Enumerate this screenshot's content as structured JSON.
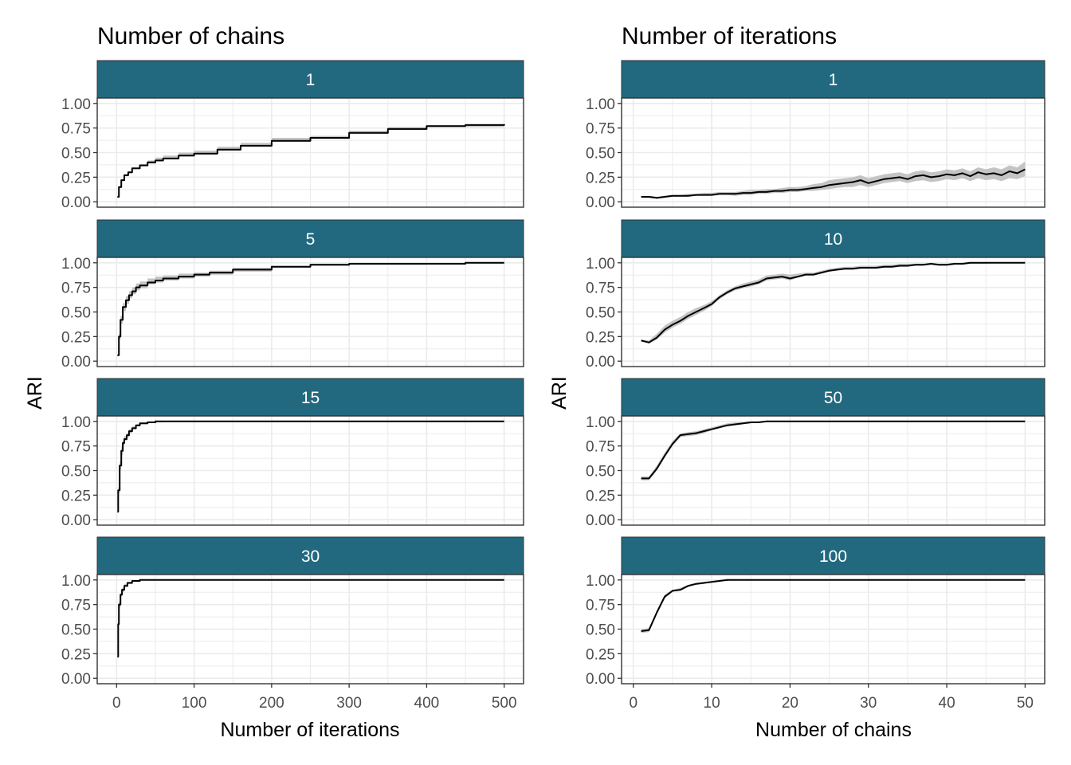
{
  "figure": {
    "left": {
      "title": "Number of chains",
      "xlabel": "Number of iterations",
      "ylabel": "ARI"
    },
    "right": {
      "title": "Number of iterations",
      "xlabel": "Number of chains",
      "ylabel": "ARI"
    }
  },
  "colors": {
    "strip": "#226980",
    "strip_text": "#ffffff",
    "line": "#000000",
    "ribbon": "#c4c4c4",
    "grid": "#ebebeb",
    "panel_border": "#333333",
    "tick_text": "#4d4d4d"
  },
  "chart_data": [
    {
      "type": "line",
      "title": "Number of chains",
      "xlabel": "Number of iterations",
      "ylabel": "ARI",
      "xlim": [
        -25,
        525
      ],
      "ylim": [
        0,
        1
      ],
      "x_ticks": [
        0,
        100,
        200,
        300,
        400,
        500
      ],
      "y_ticks": [
        0.0,
        0.25,
        0.5,
        0.75,
        1.0
      ],
      "y_tick_labels": [
        "0.00",
        "0.25",
        "0.50",
        "0.75",
        "1.00"
      ],
      "grid": true,
      "line_shape": "step",
      "panels": [
        {
          "label": "1",
          "x": [
            1,
            3,
            6,
            10,
            15,
            20,
            30,
            40,
            50,
            60,
            80,
            100,
            130,
            160,
            200,
            250,
            300,
            350,
            400,
            450,
            500
          ],
          "y": [
            0.05,
            0.15,
            0.22,
            0.27,
            0.3,
            0.34,
            0.37,
            0.4,
            0.42,
            0.44,
            0.47,
            0.49,
            0.53,
            0.57,
            0.62,
            0.65,
            0.7,
            0.74,
            0.77,
            0.78,
            0.79
          ],
          "lower": [
            0.05,
            0.14,
            0.21,
            0.26,
            0.29,
            0.33,
            0.36,
            0.39,
            0.41,
            0.43,
            0.46,
            0.48,
            0.52,
            0.56,
            0.61,
            0.64,
            0.69,
            0.73,
            0.76,
            0.76,
            0.76
          ],
          "upper": [
            0.05,
            0.16,
            0.23,
            0.28,
            0.31,
            0.35,
            0.38,
            0.42,
            0.45,
            0.47,
            0.5,
            0.52,
            0.56,
            0.6,
            0.65,
            0.67,
            0.72,
            0.76,
            0.78,
            0.79,
            0.8
          ]
        },
        {
          "label": "5",
          "x": [
            1,
            3,
            5,
            8,
            12,
            16,
            20,
            25,
            30,
            40,
            50,
            60,
            80,
            100,
            120,
            150,
            200,
            250,
            300,
            350,
            400,
            450,
            500
          ],
          "y": [
            0.06,
            0.25,
            0.42,
            0.55,
            0.62,
            0.67,
            0.71,
            0.75,
            0.77,
            0.8,
            0.82,
            0.84,
            0.86,
            0.88,
            0.9,
            0.93,
            0.96,
            0.98,
            0.99,
            0.99,
            0.99,
            1.0,
            1.0
          ],
          "lower": [
            0.06,
            0.22,
            0.38,
            0.51,
            0.58,
            0.64,
            0.68,
            0.72,
            0.74,
            0.78,
            0.8,
            0.82,
            0.84,
            0.86,
            0.88,
            0.91,
            0.95,
            0.97,
            0.98,
            0.98,
            0.99,
            0.99,
            0.99
          ],
          "upper": [
            0.06,
            0.28,
            0.46,
            0.59,
            0.66,
            0.71,
            0.75,
            0.79,
            0.81,
            0.84,
            0.86,
            0.87,
            0.89,
            0.9,
            0.92,
            0.95,
            0.97,
            0.99,
            1.0,
            1.0,
            1.0,
            1.0,
            1.0
          ]
        },
        {
          "label": "15",
          "x": [
            1,
            2,
            4,
            6,
            8,
            10,
            13,
            16,
            20,
            25,
            30,
            40,
            50,
            60,
            100,
            200,
            300,
            400,
            500
          ],
          "y": [
            0.08,
            0.3,
            0.55,
            0.7,
            0.78,
            0.82,
            0.86,
            0.9,
            0.93,
            0.96,
            0.98,
            0.99,
            1.0,
            1.0,
            1.0,
            1.0,
            1.0,
            1.0,
            1.0
          ],
          "lower": [
            0.08,
            0.27,
            0.51,
            0.66,
            0.75,
            0.8,
            0.84,
            0.88,
            0.92,
            0.95,
            0.97,
            0.99,
            0.99,
            1.0,
            1.0,
            1.0,
            1.0,
            1.0,
            1.0
          ],
          "upper": [
            0.08,
            0.33,
            0.59,
            0.74,
            0.81,
            0.85,
            0.88,
            0.92,
            0.95,
            0.97,
            0.99,
            1.0,
            1.0,
            1.0,
            1.0,
            1.0,
            1.0,
            1.0,
            1.0
          ]
        },
        {
          "label": "30",
          "x": [
            1,
            2,
            3,
            5,
            7,
            10,
            14,
            20,
            30,
            50,
            100,
            200,
            300,
            400,
            500
          ],
          "y": [
            0.22,
            0.55,
            0.75,
            0.85,
            0.9,
            0.94,
            0.97,
            0.99,
            1.0,
            1.0,
            1.0,
            1.0,
            1.0,
            1.0,
            1.0
          ],
          "lower": [
            0.22,
            0.52,
            0.72,
            0.83,
            0.88,
            0.93,
            0.96,
            0.98,
            1.0,
            1.0,
            1.0,
            1.0,
            1.0,
            1.0,
            1.0
          ],
          "upper": [
            0.22,
            0.58,
            0.78,
            0.87,
            0.92,
            0.96,
            0.98,
            1.0,
            1.0,
            1.0,
            1.0,
            1.0,
            1.0,
            1.0,
            1.0
          ]
        }
      ]
    },
    {
      "type": "line",
      "title": "Number of iterations",
      "xlabel": "Number of chains",
      "ylabel": "ARI",
      "xlim": [
        -1.5,
        52.5
      ],
      "ylim": [
        0,
        1
      ],
      "x_ticks": [
        0,
        10,
        20,
        30,
        40,
        50
      ],
      "y_ticks": [
        0.0,
        0.25,
        0.5,
        0.75,
        1.0
      ],
      "y_tick_labels": [
        "0.00",
        "0.25",
        "0.50",
        "0.75",
        "1.00"
      ],
      "grid": true,
      "line_shape": "linear",
      "panels": [
        {
          "label": "1",
          "x": [
            1,
            2,
            3,
            4,
            5,
            6,
            7,
            8,
            9,
            10,
            11,
            12,
            13,
            14,
            15,
            16,
            17,
            18,
            19,
            20,
            21,
            22,
            23,
            24,
            25,
            26,
            27,
            28,
            29,
            30,
            31,
            32,
            33,
            34,
            35,
            36,
            37,
            38,
            39,
            40,
            41,
            42,
            43,
            44,
            45,
            46,
            47,
            48,
            49,
            50
          ],
          "y": [
            0.05,
            0.05,
            0.04,
            0.05,
            0.06,
            0.06,
            0.06,
            0.07,
            0.07,
            0.07,
            0.08,
            0.08,
            0.08,
            0.09,
            0.09,
            0.1,
            0.1,
            0.11,
            0.11,
            0.12,
            0.12,
            0.13,
            0.14,
            0.15,
            0.17,
            0.18,
            0.19,
            0.2,
            0.22,
            0.19,
            0.21,
            0.23,
            0.24,
            0.25,
            0.23,
            0.26,
            0.27,
            0.25,
            0.26,
            0.28,
            0.27,
            0.29,
            0.26,
            0.3,
            0.28,
            0.29,
            0.27,
            0.31,
            0.29,
            0.33
          ],
          "lower": [
            0.04,
            0.04,
            0.03,
            0.04,
            0.05,
            0.05,
            0.05,
            0.06,
            0.06,
            0.06,
            0.07,
            0.07,
            0.06,
            0.07,
            0.07,
            0.08,
            0.08,
            0.09,
            0.09,
            0.1,
            0.1,
            0.11,
            0.11,
            0.12,
            0.13,
            0.14,
            0.15,
            0.15,
            0.17,
            0.15,
            0.17,
            0.19,
            0.2,
            0.21,
            0.19,
            0.21,
            0.22,
            0.2,
            0.21,
            0.23,
            0.22,
            0.24,
            0.21,
            0.24,
            0.22,
            0.23,
            0.21,
            0.24,
            0.23,
            0.26
          ],
          "upper": [
            0.06,
            0.06,
            0.05,
            0.06,
            0.07,
            0.07,
            0.08,
            0.08,
            0.09,
            0.09,
            0.1,
            0.1,
            0.1,
            0.11,
            0.12,
            0.12,
            0.13,
            0.13,
            0.14,
            0.15,
            0.15,
            0.16,
            0.18,
            0.19,
            0.22,
            0.23,
            0.24,
            0.25,
            0.27,
            0.24,
            0.26,
            0.28,
            0.29,
            0.3,
            0.28,
            0.31,
            0.32,
            0.3,
            0.31,
            0.33,
            0.32,
            0.34,
            0.31,
            0.35,
            0.33,
            0.35,
            0.33,
            0.37,
            0.35,
            0.41
          ]
        },
        {
          "label": "10",
          "x": [
            1,
            2,
            3,
            4,
            5,
            6,
            7,
            8,
            9,
            10,
            11,
            12,
            13,
            14,
            15,
            16,
            17,
            18,
            19,
            20,
            21,
            22,
            23,
            24,
            25,
            26,
            27,
            28,
            29,
            30,
            31,
            32,
            33,
            34,
            35,
            36,
            37,
            38,
            39,
            40,
            41,
            42,
            43,
            44,
            45,
            46,
            47,
            48,
            49,
            50
          ],
          "y": [
            0.21,
            0.19,
            0.24,
            0.32,
            0.37,
            0.41,
            0.46,
            0.5,
            0.54,
            0.58,
            0.65,
            0.7,
            0.74,
            0.76,
            0.78,
            0.8,
            0.84,
            0.85,
            0.86,
            0.84,
            0.86,
            0.88,
            0.88,
            0.9,
            0.92,
            0.93,
            0.94,
            0.94,
            0.95,
            0.95,
            0.95,
            0.96,
            0.96,
            0.97,
            0.97,
            0.98,
            0.98,
            0.99,
            0.98,
            0.98,
            0.99,
            0.99,
            1.0,
            1.0,
            1.0,
            1.0,
            1.0,
            1.0,
            1.0,
            1.0
          ],
          "lower": [
            0.2,
            0.18,
            0.22,
            0.29,
            0.34,
            0.38,
            0.43,
            0.47,
            0.51,
            0.56,
            0.63,
            0.68,
            0.72,
            0.74,
            0.76,
            0.78,
            0.82,
            0.83,
            0.84,
            0.82,
            0.85,
            0.87,
            0.87,
            0.89,
            0.91,
            0.92,
            0.93,
            0.93,
            0.94,
            0.94,
            0.94,
            0.95,
            0.95,
            0.96,
            0.96,
            0.97,
            0.97,
            0.98,
            0.97,
            0.97,
            0.98,
            0.98,
            0.99,
            0.99,
            0.99,
            1.0,
            1.0,
            1.0,
            1.0,
            1.0
          ],
          "upper": [
            0.22,
            0.21,
            0.28,
            0.36,
            0.41,
            0.45,
            0.5,
            0.54,
            0.57,
            0.61,
            0.67,
            0.72,
            0.76,
            0.79,
            0.81,
            0.83,
            0.87,
            0.88,
            0.89,
            0.88,
            0.89,
            0.9,
            0.9,
            0.92,
            0.94,
            0.95,
            0.96,
            0.96,
            0.97,
            0.97,
            0.97,
            0.98,
            0.98,
            0.99,
            0.99,
            0.99,
            0.99,
            1.0,
            0.99,
            0.99,
            1.0,
            1.0,
            1.0,
            1.0,
            1.0,
            1.0,
            1.0,
            1.0,
            1.0,
            1.0
          ]
        },
        {
          "label": "50",
          "x": [
            1,
            2,
            3,
            4,
            5,
            6,
            7,
            8,
            9,
            10,
            11,
            12,
            13,
            14,
            15,
            16,
            17,
            18,
            20,
            25,
            30,
            35,
            40,
            45,
            50
          ],
          "y": [
            0.42,
            0.42,
            0.52,
            0.65,
            0.77,
            0.86,
            0.87,
            0.88,
            0.9,
            0.92,
            0.94,
            0.96,
            0.97,
            0.98,
            0.99,
            0.99,
            1.0,
            1.0,
            1.0,
            1.0,
            1.0,
            1.0,
            1.0,
            1.0,
            1.0
          ],
          "lower": [
            0.4,
            0.4,
            0.5,
            0.63,
            0.75,
            0.84,
            0.85,
            0.86,
            0.88,
            0.91,
            0.93,
            0.95,
            0.96,
            0.97,
            0.98,
            0.99,
            0.99,
            1.0,
            1.0,
            1.0,
            1.0,
            1.0,
            1.0,
            1.0,
            1.0
          ],
          "upper": [
            0.44,
            0.44,
            0.55,
            0.68,
            0.8,
            0.88,
            0.89,
            0.9,
            0.92,
            0.94,
            0.96,
            0.98,
            0.99,
            0.99,
            1.0,
            1.0,
            1.0,
            1.0,
            1.0,
            1.0,
            1.0,
            1.0,
            1.0,
            1.0,
            1.0
          ]
        },
        {
          "label": "100",
          "x": [
            1,
            2,
            3,
            4,
            5,
            6,
            7,
            8,
            9,
            10,
            11,
            12,
            13,
            15,
            20,
            25,
            30,
            35,
            40,
            45,
            50
          ],
          "y": [
            0.48,
            0.49,
            0.67,
            0.83,
            0.89,
            0.9,
            0.94,
            0.96,
            0.97,
            0.98,
            0.99,
            1.0,
            1.0,
            1.0,
            1.0,
            1.0,
            1.0,
            1.0,
            1.0,
            1.0,
            1.0
          ],
          "lower": [
            0.46,
            0.47,
            0.65,
            0.81,
            0.88,
            0.89,
            0.93,
            0.95,
            0.96,
            0.98,
            0.99,
            0.99,
            1.0,
            1.0,
            1.0,
            1.0,
            1.0,
            1.0,
            1.0,
            1.0,
            1.0
          ],
          "upper": [
            0.5,
            0.51,
            0.69,
            0.85,
            0.9,
            0.92,
            0.95,
            0.97,
            0.98,
            0.99,
            1.0,
            1.0,
            1.0,
            1.0,
            1.0,
            1.0,
            1.0,
            1.0,
            1.0,
            1.0,
            1.0
          ]
        }
      ]
    }
  ]
}
